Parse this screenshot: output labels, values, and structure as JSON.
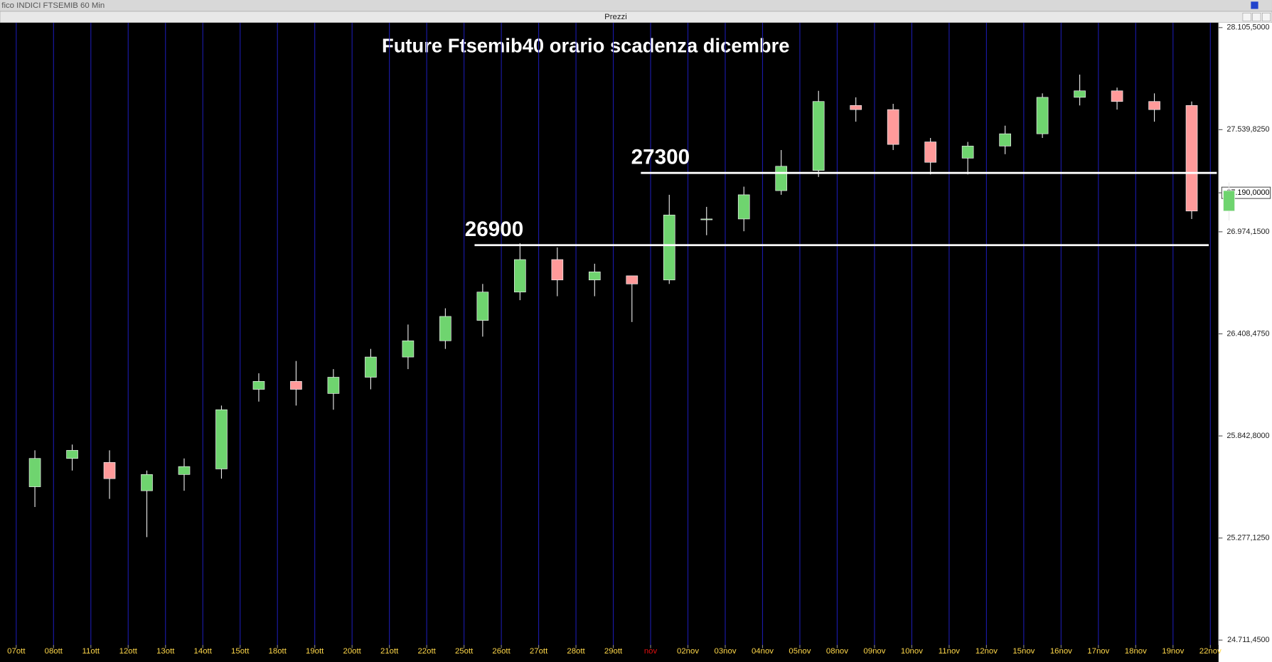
{
  "window_title": "fico INDICI FTSEMIB 60 Min",
  "panel_title": "Prezzi",
  "chart_data": {
    "type": "candlestick",
    "title": "Future Ftsemib40 orario scadenza dicembre",
    "categories": [
      "07ott",
      "08ott",
      "11ott",
      "12ott",
      "13ott",
      "14ott",
      "15ott",
      "18ott",
      "19ott",
      "20ott",
      "21ott",
      "22ott",
      "25ott",
      "26ott",
      "27ott",
      "28ott",
      "29ott",
      "nov",
      "02nov",
      "03nov",
      "04nov",
      "05nov",
      "08nov",
      "09nov",
      "10nov",
      "11nov",
      "12nov",
      "15nov",
      "16nov",
      "17nov",
      "18nov",
      "19nov",
      "22nov"
    ],
    "open": [
      25561,
      25718,
      25696,
      25539,
      25629,
      25660,
      26101,
      26145,
      26078,
      26168,
      26280,
      26370,
      26483,
      26640,
      26820,
      26707,
      26730,
      26707,
      27045,
      27045,
      27202,
      27314,
      27674,
      27651,
      27472,
      27382,
      27449,
      27517,
      27719,
      27755,
      27696,
      27674,
      27089
    ],
    "high": [
      25763,
      25795,
      25763,
      25651,
      25718,
      26011,
      26190,
      26258,
      26213,
      26325,
      26460,
      26550,
      26685,
      26910,
      26887,
      26797,
      26730,
      27179,
      27112,
      27224,
      27427,
      27755,
      27719,
      27683,
      27494,
      27472,
      27562,
      27741,
      27845,
      27773,
      27741,
      27696,
      27247
    ],
    "low": [
      25449,
      25651,
      25494,
      25282,
      25539,
      25606,
      26033,
      26011,
      25988,
      26101,
      26213,
      26325,
      26393,
      26595,
      26617,
      26617,
      26474,
      26685,
      26955,
      26977,
      27179,
      27278,
      27584,
      27427,
      27292,
      27292,
      27404,
      27494,
      27674,
      27651,
      27584,
      27045,
      27036
    ],
    "close": [
      25718,
      25763,
      25606,
      25629,
      25673,
      25988,
      26145,
      26101,
      26168,
      26280,
      26370,
      26505,
      26640,
      26820,
      26707,
      26752,
      26685,
      27067,
      27045,
      27179,
      27337,
      27696,
      27651,
      27458,
      27359,
      27449,
      27517,
      27719,
      27755,
      27696,
      27651,
      27089,
      27202
    ],
    "up_color": "#6fd46f",
    "down_color": "#ff9a9a",
    "ylim": [
      24711.45,
      28105.5
    ],
    "yticks": [
      {
        "value": 28105.5,
        "label": "28.105,5000"
      },
      {
        "value": 27539.825,
        "label": "27.539,8250"
      },
      {
        "value": 26974.15,
        "label": "26.974,1500"
      },
      {
        "value": 26408.475,
        "label": "26.408,4750"
      },
      {
        "value": 25842.8,
        "label": "25.842,8000"
      },
      {
        "value": 25277.125,
        "label": "25.277,1250"
      },
      {
        "value": 24711.45,
        "label": "24.711,4500"
      }
    ],
    "last_price": {
      "value": 27190,
      "label": "27.190,0000"
    },
    "x_label_color": "#ffd84a",
    "highlight_categories": [
      "nov"
    ],
    "highlight_color": "#e01010",
    "grid_color": "#1a1aa8",
    "annotations": [
      {
        "text": "26900",
        "value": 26900
      },
      {
        "text": "27300",
        "value": 27300
      }
    ]
  }
}
